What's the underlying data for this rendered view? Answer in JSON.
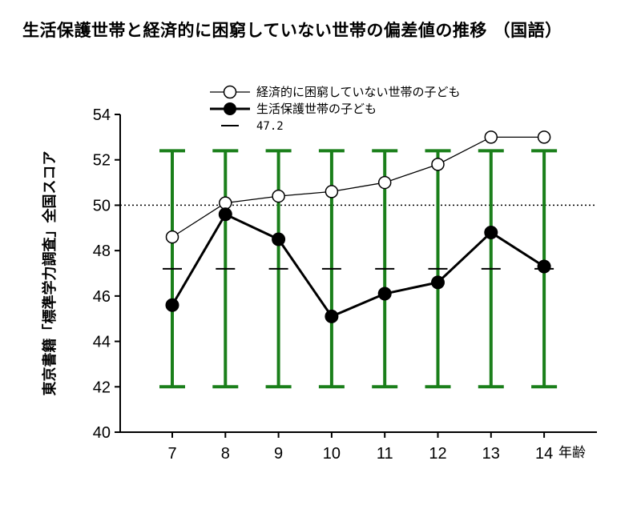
{
  "chart_data": {
    "type": "line",
    "title": "生活保護世帯と経済的に困窮していない世帯の偏差値の推移 （国語）",
    "ylabel": "東京書籍「標準学力調査」全国スコア",
    "xunit": "年齢",
    "x": [
      7,
      8,
      9,
      10,
      11,
      12,
      13,
      14
    ],
    "ylim": [
      40,
      54
    ],
    "yticks": [
      40,
      42,
      44,
      46,
      48,
      50,
      52,
      54
    ],
    "reference_line": 50,
    "series": [
      {
        "name": "経済的に困窮していない世帯の子ども",
        "marker": "open-circle",
        "color": "#000000",
        "values": [
          48.6,
          50.1,
          50.4,
          50.6,
          51.0,
          51.8,
          53.0,
          53.0
        ]
      },
      {
        "name": "生活保護世帯の子ども",
        "marker": "filled-circle",
        "color": "#000000",
        "values": [
          45.6,
          49.6,
          48.5,
          45.1,
          46.1,
          46.6,
          48.8,
          47.3
        ]
      }
    ],
    "dash_marker": {
      "label": "47.2",
      "value": 47.2
    },
    "error_bars": {
      "color": "#1a7f1a",
      "low": 42,
      "high": 52.4
    },
    "legend_position": "top"
  }
}
